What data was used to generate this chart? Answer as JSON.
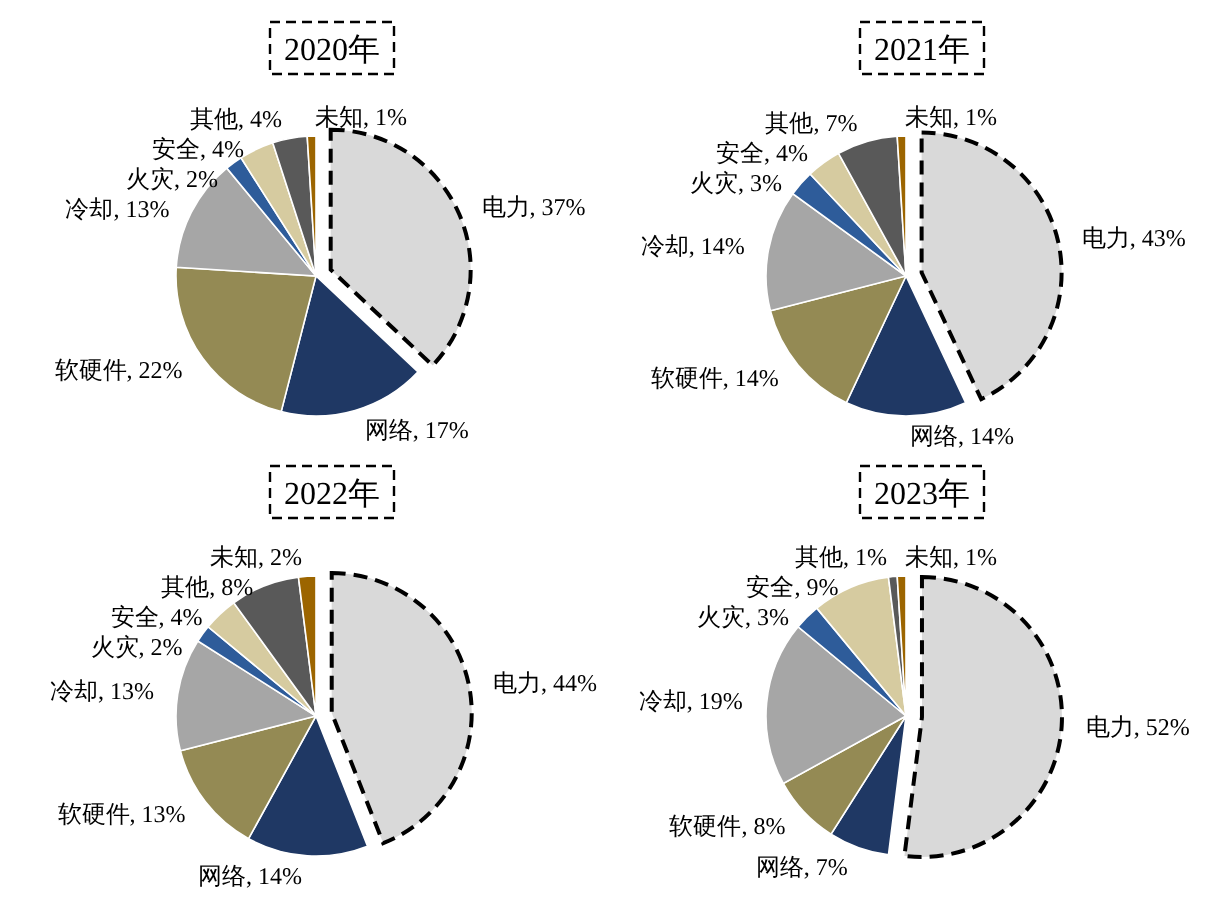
{
  "chart_data": [
    {
      "type": "pie",
      "title": "2020年",
      "categories": [
        "电力",
        "网络",
        "软硬件",
        "冷却",
        "火灾",
        "安全",
        "其他",
        "未知"
      ],
      "values": [
        37,
        17,
        22,
        13,
        2,
        4,
        4,
        1
      ],
      "value_labels": [
        "37%",
        "17%",
        "22%",
        "13%",
        "2%",
        "4%",
        "4%",
        "1%"
      ],
      "colors": [
        "#d9d9d9",
        "#1f3864",
        "#948a54",
        "#a6a6a6",
        "#2e5c9a",
        "#d6cba0",
        "#595959",
        "#9c6500"
      ]
    },
    {
      "type": "pie",
      "title": "2021年",
      "categories": [
        "电力",
        "网络",
        "软硬件",
        "冷却",
        "火灾",
        "安全",
        "其他",
        "未知"
      ],
      "values": [
        43,
        14,
        14,
        14,
        3,
        4,
        7,
        1
      ],
      "value_labels": [
        "43%",
        "14%",
        "14%",
        "14%",
        "3%",
        "4%",
        "7%",
        "1%"
      ],
      "colors": [
        "#d9d9d9",
        "#1f3864",
        "#948a54",
        "#a6a6a6",
        "#2e5c9a",
        "#d6cba0",
        "#595959",
        "#9c6500"
      ]
    },
    {
      "type": "pie",
      "title": "2022年",
      "categories": [
        "电力",
        "网络",
        "软硬件",
        "冷却",
        "火灾",
        "安全",
        "其他",
        "未知"
      ],
      "values": [
        44,
        14,
        13,
        13,
        2,
        4,
        8,
        2
      ],
      "value_labels": [
        "44%",
        "14%",
        "13%",
        "13%",
        "2%",
        "4%",
        "8%",
        "2%"
      ],
      "colors": [
        "#d9d9d9",
        "#1f3864",
        "#948a54",
        "#a6a6a6",
        "#2e5c9a",
        "#d6cba0",
        "#595959",
        "#9c6500"
      ]
    },
    {
      "type": "pie",
      "title": "2023年",
      "categories": [
        "电力",
        "网络",
        "软硬件",
        "冷却",
        "火灾",
        "安全",
        "其他",
        "未知"
      ],
      "values": [
        52,
        7,
        8,
        19,
        3,
        9,
        1,
        1
      ],
      "value_labels": [
        "52%",
        "7%",
        "8%",
        "19%",
        "3%",
        "9%",
        "1%",
        "1%"
      ],
      "colors": [
        "#d9d9d9",
        "#1f3864",
        "#948a54",
        "#a6a6a6",
        "#2e5c9a",
        "#d6cba0",
        "#595959",
        "#9c6500"
      ]
    }
  ]
}
